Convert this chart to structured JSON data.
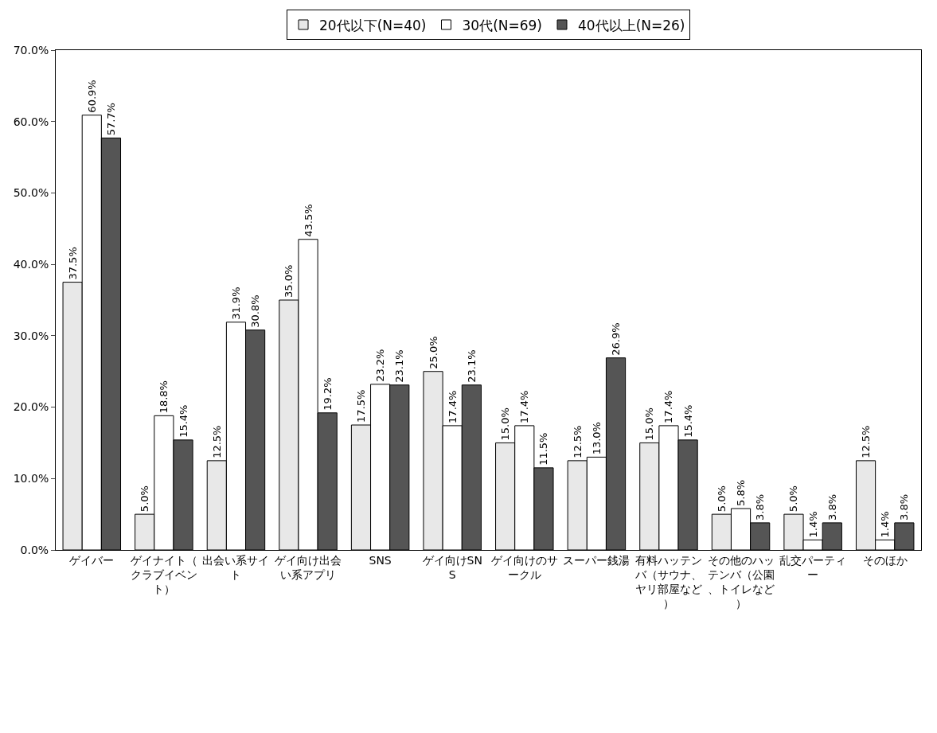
{
  "chart_data": {
    "type": "bar",
    "categories": [
      "ゲイバー",
      "ゲイナイト（クラブイベント）",
      "出会い系サイト",
      "ゲイ向け出会い系アプリ",
      "SNS",
      "ゲイ向けSNS",
      "ゲイ向けのサークル",
      "スーパー銭湯",
      "有料ハッテンバ（サウナ、ヤリ部屋など）",
      "その他のハッテンバ（公園、トイレなど）",
      "乱交パーティー",
      "そのほか"
    ],
    "series": [
      {
        "name": "20代以下(N=40)",
        "color": "#e8e8e8",
        "values": [
          37.5,
          5.0,
          12.5,
          35.0,
          17.5,
          25.0,
          15.0,
          12.5,
          15.0,
          5.0,
          5.0,
          12.5
        ],
        "value_labels": [
          "37.5%",
          "5.0%",
          "12.5%",
          "35.0%",
          "17.5%",
          "25.0%",
          "15.0%",
          "12.5%",
          "15.0%",
          "5.0%",
          "5.0%",
          "12.5%"
        ]
      },
      {
        "name": "30代(N=69)",
        "color": "#ffffff",
        "values": [
          60.9,
          18.8,
          31.9,
          43.5,
          23.2,
          17.4,
          17.4,
          13.0,
          17.4,
          5.8,
          1.4,
          1.4
        ],
        "value_labels": [
          "60.9%",
          "18.8%",
          "31.9%",
          "43.5%",
          "23.2%",
          "17.4%",
          "17.4%",
          "13.0%",
          "17.4%",
          "5.8%",
          "1.4%",
          "1.4%"
        ]
      },
      {
        "name": "40代以上(N=26)",
        "color": "#555555",
        "values": [
          57.7,
          15.4,
          30.8,
          19.2,
          23.1,
          23.1,
          11.5,
          26.9,
          15.4,
          3.8,
          3.8,
          3.8
        ],
        "value_labels": [
          "57.7%",
          "15.4%",
          "30.8%",
          "19.2%",
          "23.1%",
          "23.1%",
          "11.5%",
          "26.9%",
          "15.4%",
          "3.8%",
          "3.8%",
          "3.8%"
        ]
      }
    ],
    "ylim": [
      0,
      70
    ],
    "yticks": [
      {
        "value": 0,
        "label": "0.0%"
      },
      {
        "value": 10,
        "label": "10.0%"
      },
      {
        "value": 20,
        "label": "20.0%"
      },
      {
        "value": 30,
        "label": "30.0%"
      },
      {
        "value": 40,
        "label": "40.0%"
      },
      {
        "value": 50,
        "label": "50.0%"
      },
      {
        "value": 60,
        "label": "60.0%"
      },
      {
        "value": 70,
        "label": "70.0%"
      }
    ],
    "grid": false,
    "legend": "top"
  }
}
